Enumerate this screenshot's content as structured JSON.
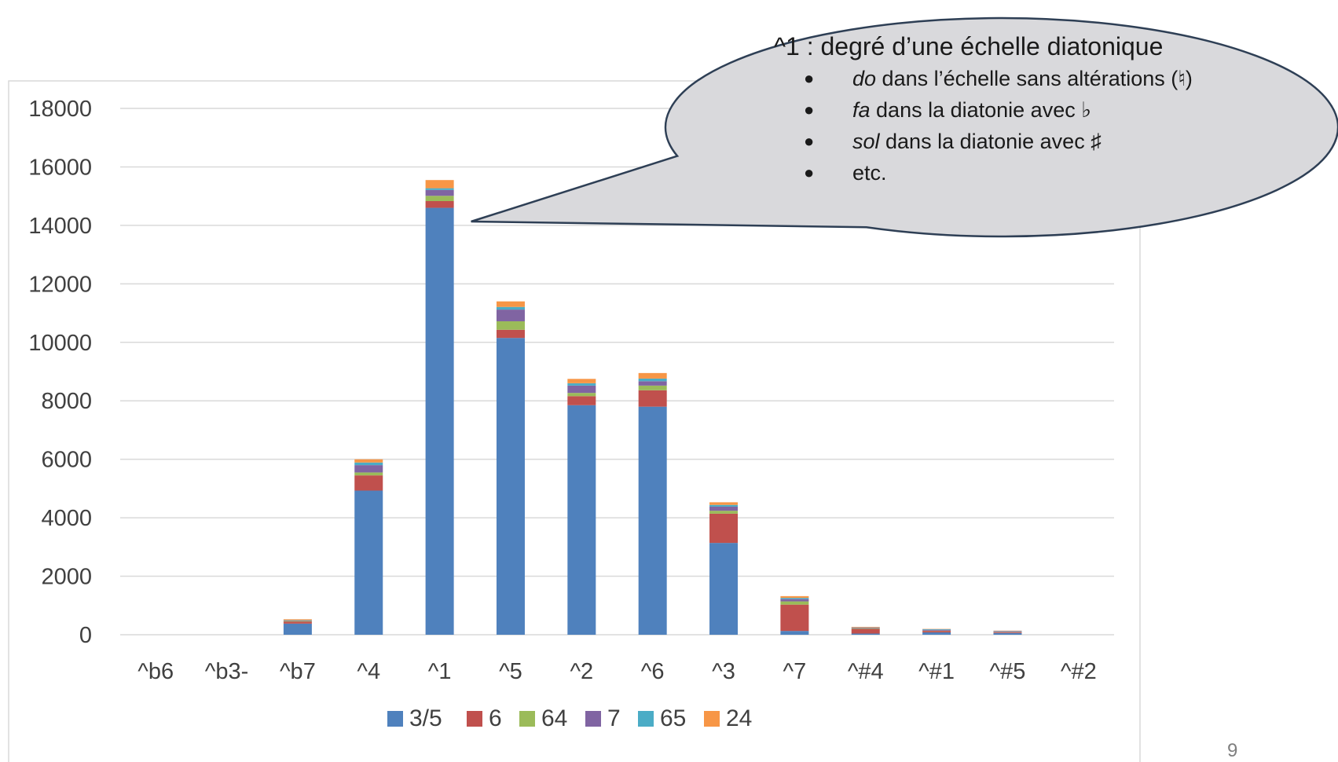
{
  "chart_data": {
    "type": "bar",
    "stacked": true,
    "categories": [
      "^b6",
      "^b3-",
      "^b7",
      "^4",
      "^1",
      "^5",
      "^2",
      "^6",
      "^3",
      "^7",
      "^#4",
      "^#1",
      "^#5",
      "^#2"
    ],
    "series": [
      {
        "name": "3/5",
        "color": "#4F81BD",
        "values": [
          0,
          0,
          380,
          4930,
          14600,
          10150,
          7850,
          7800,
          3140,
          130,
          40,
          80,
          60,
          0
        ]
      },
      {
        "name": "6",
        "color": "#C0504D",
        "values": [
          0,
          0,
          70,
          520,
          230,
          280,
          310,
          560,
          1000,
          900,
          160,
          50,
          30,
          0
        ]
      },
      {
        "name": "64",
        "color": "#9BBB59",
        "values": [
          0,
          0,
          20,
          100,
          180,
          290,
          110,
          160,
          100,
          110,
          20,
          10,
          10,
          0
        ]
      },
      {
        "name": "7",
        "color": "#8064A2",
        "values": [
          0,
          0,
          20,
          250,
          200,
          400,
          250,
          150,
          140,
          80,
          20,
          30,
          20,
          0
        ]
      },
      {
        "name": "65",
        "color": "#4BACC6",
        "values": [
          0,
          0,
          10,
          90,
          60,
          90,
          80,
          90,
          60,
          40,
          10,
          20,
          10,
          0
        ]
      },
      {
        "name": "24",
        "color": "#F79646",
        "values": [
          0,
          0,
          30,
          110,
          280,
          190,
          150,
          190,
          90,
          60,
          20,
          10,
          10,
          0
        ]
      }
    ],
    "ylim": [
      0,
      18000
    ],
    "yticks": [
      0,
      2000,
      4000,
      6000,
      8000,
      10000,
      12000,
      14000,
      16000,
      18000
    ],
    "grid": true,
    "legend_position": "bottom"
  },
  "callout": {
    "title": "^1 : degré d’une échelle diatonique",
    "bullet_glyph": "●",
    "items": [
      {
        "em": "do",
        "rest": " dans l’échelle sans altérations (♮)"
      },
      {
        "em": "fa",
        "rest": " dans la diatonie avec ♭"
      },
      {
        "em": "sol",
        "rest": " dans la diatonie avec ♯"
      },
      {
        "em": "",
        "rest": "etc."
      }
    ],
    "fill_color": "#D9D9DC",
    "stroke_color": "#2E3F55"
  },
  "page_number": "9"
}
